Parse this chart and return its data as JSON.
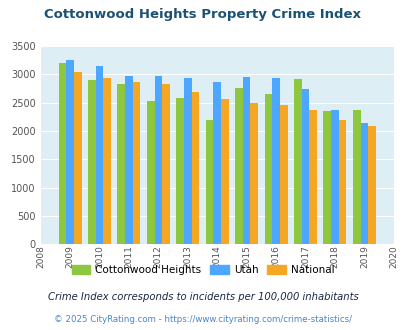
{
  "title": "Cottonwood Heights Property Crime Index",
  "years": [
    2009,
    2010,
    2011,
    2012,
    2013,
    2014,
    2015,
    2016,
    2017,
    2018,
    2019
  ],
  "cottonwood": [
    3200,
    2900,
    2840,
    2540,
    2590,
    2190,
    2760,
    2650,
    2920,
    2360,
    2380
  ],
  "utah": [
    3250,
    3150,
    2970,
    2980,
    2940,
    2870,
    2960,
    2930,
    2750,
    2380,
    2140
  ],
  "national": [
    3040,
    2940,
    2870,
    2840,
    2690,
    2570,
    2490,
    2460,
    2370,
    2190,
    2090
  ],
  "colors": {
    "cottonwood": "#8dc63f",
    "utah": "#4da6ff",
    "national": "#f5a623"
  },
  "ylim": [
    0,
    3500
  ],
  "yticks": [
    0,
    500,
    1000,
    1500,
    2000,
    2500,
    3000,
    3500
  ],
  "xtick_start": 2008,
  "xtick_end": 2020,
  "bg_color": "#ddeef5",
  "legend_labels": [
    "Cottonwood Heights",
    "Utah",
    "National"
  ],
  "footnote1": "Crime Index corresponds to incidents per 100,000 inhabitants",
  "footnote2": "© 2025 CityRating.com - https://www.cityrating.com/crime-statistics/",
  "title_color": "#1a5276",
  "footnote1_color": "#1a2744",
  "footnote2_color": "#4a86c8"
}
